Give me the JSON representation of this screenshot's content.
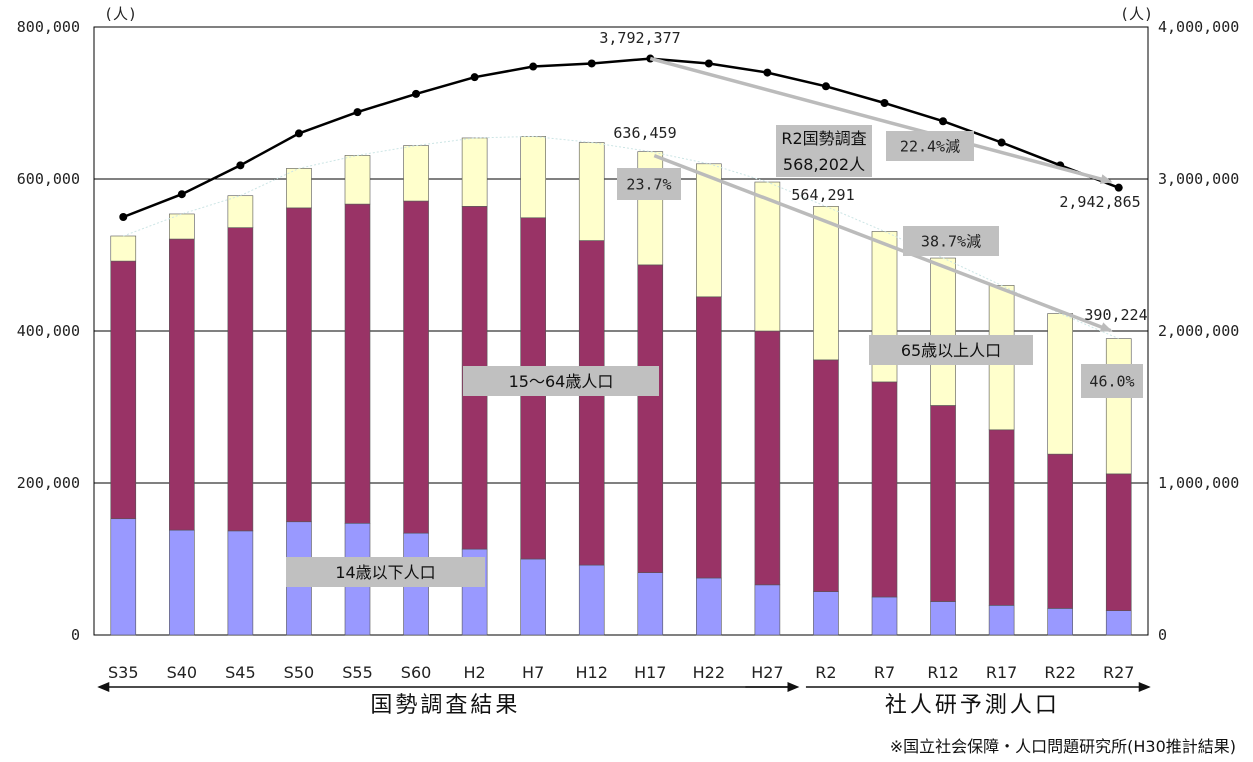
{
  "chart_data": {
    "type": "bar",
    "stacked": true,
    "categories": [
      "S35",
      "S40",
      "S45",
      "S50",
      "S55",
      "S60",
      "H2",
      "H7",
      "H12",
      "H17",
      "H22",
      "H27",
      "R2",
      "R7",
      "R12",
      "R17",
      "R22",
      "R27"
    ],
    "y_left": {
      "unit_label": "(人)",
      "ylim": [
        0,
        800000
      ],
      "ticks": [
        "0",
        "200,000",
        "400,000",
        "600,000",
        "800,000"
      ]
    },
    "y_right": {
      "unit_label": "(人)",
      "ylim": [
        0,
        4000000
      ],
      "ticks": [
        "0",
        "1,000,000",
        "2,000,000",
        "3,000,000",
        "4,000,000"
      ]
    },
    "grid": true,
    "series": [
      {
        "key": "child",
        "color": "#9999ff",
        "axis": "left",
        "values": [
          153000,
          138000,
          137000,
          149000,
          147000,
          134000,
          113000,
          100000,
          92000,
          82000,
          75000,
          66000,
          57000,
          50000,
          44000,
          39000,
          35000,
          32000
        ]
      },
      {
        "key": "working",
        "color": "#993366",
        "axis": "left",
        "values": [
          339000,
          383000,
          399000,
          413000,
          420000,
          437000,
          451000,
          449000,
          427000,
          405000,
          370000,
          334000,
          305000,
          283000,
          258000,
          231000,
          203000,
          180000
        ]
      },
      {
        "key": "elder",
        "color": "#ffffcc",
        "axis": "left",
        "values": [
          33000,
          33000,
          42000,
          52000,
          64000,
          73000,
          90000,
          107000,
          129000,
          149000,
          175000,
          196000,
          202000,
          198000,
          194000,
          190000,
          185000,
          178000
        ]
      },
      {
        "key": "total",
        "color": "#000000",
        "axis": "right",
        "type": "line",
        "values": [
          2750000,
          2900000,
          3090000,
          3300000,
          3440000,
          3560000,
          3670000,
          3740000,
          3760000,
          3792377,
          3760000,
          3700000,
          3610000,
          3500000,
          3380000,
          3240000,
          3090000,
          2942865
        ]
      }
    ],
    "annotations": {
      "total_peak": "3,792,377",
      "total_end": "2,942,865",
      "bar_peak": "636,459",
      "bar_r2": "564,291",
      "bar_end": "390,224",
      "census_label_1": "R2国勢調査",
      "census_label_2": "568,202人",
      "total_decrease": "22.4%減",
      "bar_decrease": "38.7%減",
      "elder_pct_start": "23.7%",
      "elder_pct_end": "46.0%",
      "label_child": "14歳以下人口",
      "label_working": "15～64歳人口",
      "label_elder": "65歳以上人口"
    },
    "periods": {
      "census": "国勢調査結果",
      "projection": "社人研予測人口"
    },
    "source": "※国立社会保障・人口問題研究所(H30推計結果)"
  }
}
